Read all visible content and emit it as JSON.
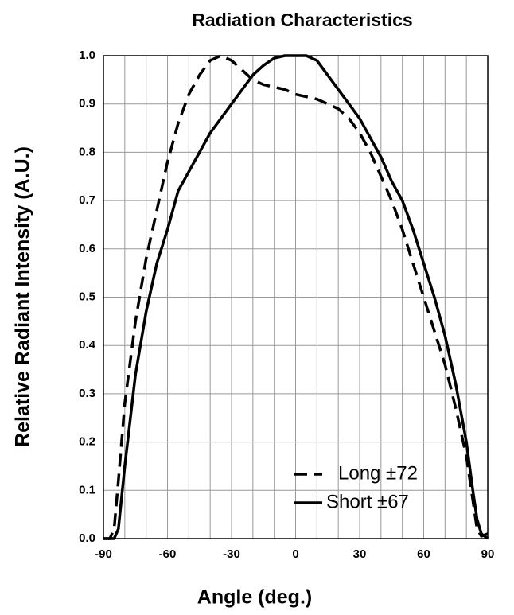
{
  "chart_data": {
    "type": "line",
    "title": "Radiation Characteristics",
    "xlabel": "Angle (deg.)",
    "ylabel": "Relative Radiant Intensity (A.U.)",
    "x": [
      -90,
      -87,
      -85,
      -83,
      -80,
      -75,
      -70,
      -65,
      -60,
      -55,
      -50,
      -45,
      -40,
      -35,
      -30,
      -25,
      -20,
      -15,
      -10,
      -5,
      0,
      5,
      10,
      15,
      20,
      25,
      30,
      35,
      40,
      45,
      50,
      55,
      60,
      65,
      70,
      75,
      80,
      83,
      85,
      87,
      90
    ],
    "series": [
      {
        "name": "Long ±72",
        "color": "#000000",
        "style": "dashed",
        "values": [
          0,
          0,
          0.02,
          0.12,
          0.28,
          0.45,
          0.58,
          0.68,
          0.78,
          0.86,
          0.92,
          0.96,
          0.99,
          1.0,
          0.99,
          0.97,
          0.95,
          0.94,
          0.935,
          0.93,
          0.92,
          0.915,
          0.91,
          0.9,
          0.89,
          0.87,
          0.84,
          0.8,
          0.75,
          0.7,
          0.64,
          0.57,
          0.5,
          0.43,
          0.36,
          0.27,
          0.17,
          0.08,
          0.02,
          0.005,
          0.01
        ]
      },
      {
        "name": "Short ±67",
        "color": "#000000",
        "style": "solid",
        "values": [
          0,
          0,
          0,
          0.02,
          0.15,
          0.34,
          0.47,
          0.57,
          0.64,
          0.72,
          0.76,
          0.8,
          0.84,
          0.87,
          0.9,
          0.93,
          0.96,
          0.98,
          0.995,
          1.0,
          1.0,
          1.0,
          0.99,
          0.96,
          0.93,
          0.9,
          0.87,
          0.83,
          0.79,
          0.74,
          0.7,
          0.64,
          0.57,
          0.5,
          0.42,
          0.32,
          0.2,
          0.1,
          0.04,
          0.01,
          0
        ]
      }
    ],
    "xlim": [
      -90,
      90
    ],
    "xticks": [
      -90,
      -60,
      -30,
      0,
      30,
      60,
      90
    ],
    "x_minor_grid": [
      -80,
      -70,
      -50,
      -40,
      -20,
      -10,
      10,
      20,
      40,
      50,
      70,
      80
    ],
    "ylim": [
      0,
      1
    ],
    "yticks": [
      {
        "value": 0,
        "label": "0.0"
      },
      0.1,
      0.2,
      0.3,
      0.4,
      0.5,
      0.6,
      0.7,
      0.8,
      0.9,
      {
        "value": 1,
        "label": "1.0"
      }
    ],
    "grid": true,
    "legend": "lower right"
  }
}
